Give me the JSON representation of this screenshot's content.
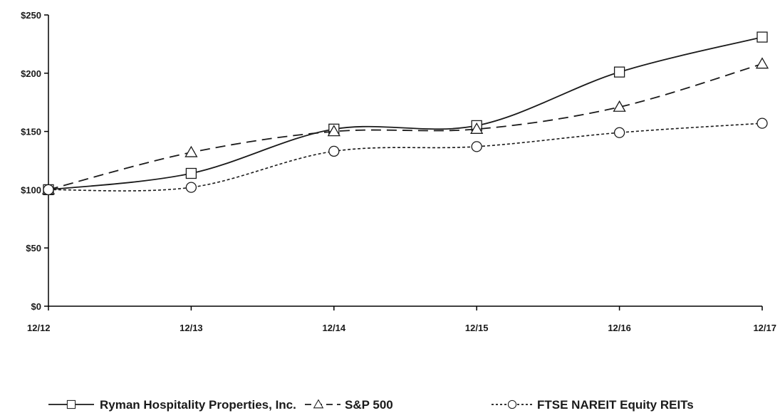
{
  "chart_data": {
    "type": "line",
    "categories": [
      "12/12",
      "12/13",
      "12/14",
      "12/15",
      "12/16",
      "12/17"
    ],
    "ylim": [
      0,
      250
    ],
    "yticks": [
      0,
      50,
      100,
      150,
      200,
      250
    ],
    "ytick_labels": [
      "$0",
      "$50",
      "$100",
      "$150",
      "$200",
      "$250"
    ],
    "grid": false,
    "legend_position": "bottom",
    "series": [
      {
        "name": "Ryman Hospitality Properties, Inc.",
        "values": [
          100,
          114,
          152,
          155,
          201,
          231
        ],
        "marker": "square",
        "line_style": "solid",
        "color": "#1a1a1a"
      },
      {
        "name": "S&P 500",
        "values": [
          100,
          132,
          150,
          152,
          171,
          208
        ],
        "marker": "triangle",
        "line_style": "dashed",
        "color": "#1a1a1a"
      },
      {
        "name": "FTSE NAREIT Equity REITs",
        "values": [
          100,
          102,
          133,
          137,
          149,
          157
        ],
        "marker": "circle",
        "line_style": "dotted",
        "color": "#1a1a1a"
      }
    ]
  }
}
